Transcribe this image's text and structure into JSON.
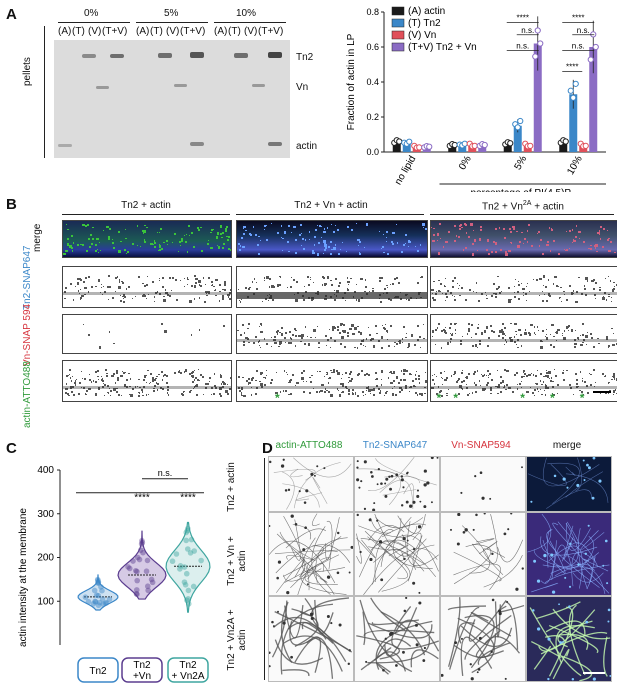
{
  "panelA": {
    "label": "A",
    "gel": {
      "groups": [
        "0%",
        "5%",
        "10%"
      ],
      "lanes": [
        "(A)",
        "(T)",
        "(V)",
        "(T+V)"
      ],
      "side_label": "pellets",
      "band_labels": [
        "Tn2",
        "Vn",
        "actin"
      ]
    }
  },
  "chart_data": {
    "type": "bar",
    "ylabel": "Fraction of actin in LP",
    "xlabel": "percentage of PI(4,5)P",
    "xlabel_sub": "2",
    "ylim": [
      0,
      0.8
    ],
    "yticks": [
      "0.0",
      "0.2",
      "0.4",
      "0.6",
      "0.8"
    ],
    "categories": [
      "no lipid",
      "0%",
      "5%",
      "10%"
    ],
    "series": [
      {
        "name": "(A) actin",
        "color": "#1a1a1a",
        "values": [
          0.06,
          0.04,
          0.05,
          0.06
        ]
      },
      {
        "name": "(T) Tn2",
        "color": "#3b87c8",
        "values": [
          0.05,
          0.04,
          0.15,
          0.33
        ]
      },
      {
        "name": "(V) Vn",
        "color": "#e0505a",
        "values": [
          0.03,
          0.04,
          0.04,
          0.04
        ]
      },
      {
        "name": "(T+V) Tn2 + Vn",
        "color": "#8b6cc4",
        "values": [
          0.03,
          0.04,
          0.62,
          0.6
        ]
      }
    ],
    "significance": [
      "****",
      "n.s.",
      "n.s.",
      "****",
      "n.s.",
      "n.s.",
      "****"
    ]
  },
  "panelB": {
    "label": "B",
    "columns": [
      "Tn2 + actin",
      "Tn2 + Vn + actin",
      "Tn2 + Vn",
      "2A",
      " + actin"
    ],
    "rows": [
      "merge",
      "Tn2-SNAP647",
      "Vn-SNAP 594",
      "actin-ATTO488"
    ],
    "asterisk": "*"
  },
  "panelC": {
    "label": "C",
    "ylabel": "actin intensity at the membrane",
    "yticks": [
      "100",
      "200",
      "300",
      "400"
    ],
    "groups": [
      "Tn2",
      "Tn2 +Vn",
      "Tn2 + Vn2A"
    ],
    "group_colors": [
      "#3b87c8",
      "#5b3d8f",
      "#3fa6a0"
    ],
    "significance": [
      "n.s.",
      "****",
      "****"
    ]
  },
  "panelD": {
    "label": "D",
    "columns": [
      "actin-ATTO488",
      "Tn2-SNAP647",
      "Vn-SNAP594",
      "merge"
    ],
    "rows": [
      "Tn2 + actin",
      "Tn2 + Vn + actin",
      "Tn2 + Vn2A + actin"
    ]
  }
}
